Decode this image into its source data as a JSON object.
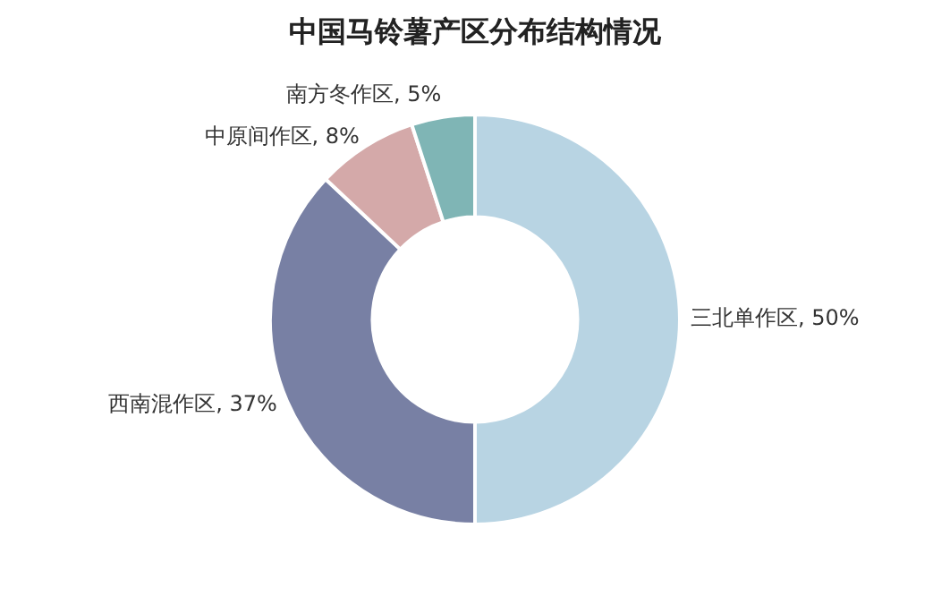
{
  "chart_data": {
    "type": "donut",
    "title": "中国马铃薯产区分布结构情况",
    "categories": [
      "三北单作区",
      "西南混作区",
      "中原间作区",
      "南方冬作区"
    ],
    "values": [
      50,
      37,
      8,
      5
    ],
    "value_labels": [
      "50%",
      "37%",
      "8%",
      "5%"
    ],
    "colors": [
      "#b8d4e3",
      "#7880a4",
      "#d4a9a9",
      "#7fb5b5"
    ],
    "legend": false
  }
}
